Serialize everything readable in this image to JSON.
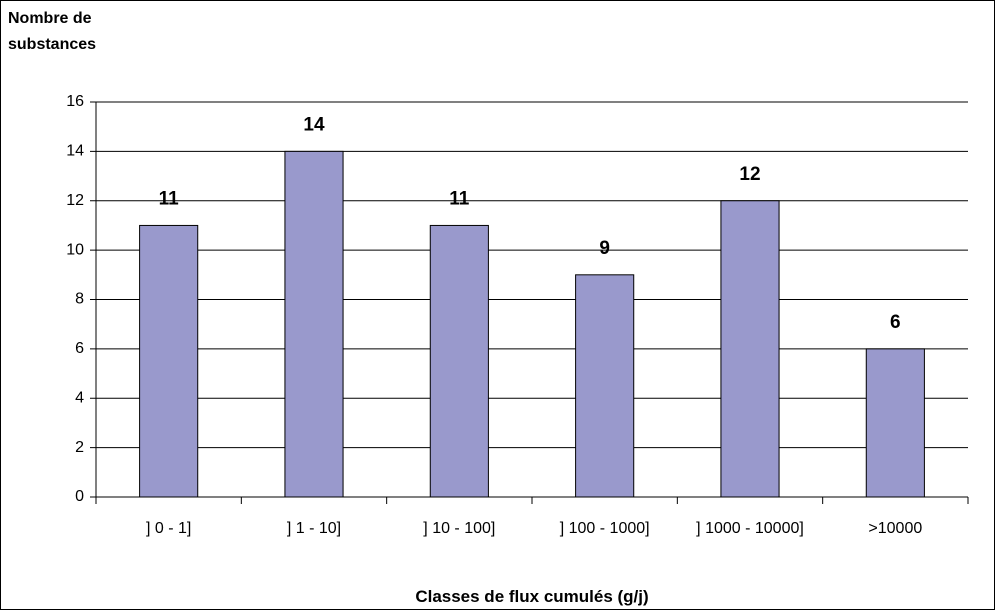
{
  "chart_data": {
    "type": "bar",
    "title": "Nombre de substances",
    "x_label": "Classes de flux cumulés (g/j)",
    "categories": [
      "] 0 - 1]",
      "] 1 - 10]",
      "] 10 - 100]",
      "] 100 - 1000]",
      "] 1000 - 10000]",
      ">10000"
    ],
    "values": [
      11,
      14,
      11,
      9,
      12,
      6
    ],
    "color": "#9999cc",
    "ylim": [
      0,
      16
    ],
    "yticks": [
      0,
      2,
      4,
      6,
      8,
      10,
      12,
      14,
      16
    ],
    "grid": true
  }
}
